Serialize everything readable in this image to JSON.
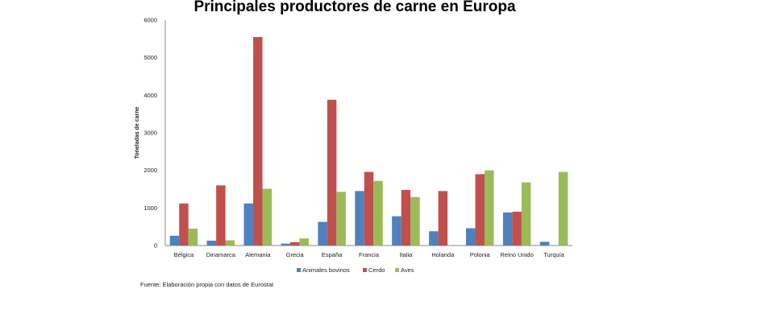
{
  "chart_data": {
    "type": "bar",
    "title": "Principales productores de carne en Europa",
    "ylabel": "Toneladas de carne",
    "xlabel": "",
    "ylim": [
      0,
      6000
    ],
    "yticks": [
      "0",
      "1000",
      "2000",
      "3000",
      "4000",
      "5000",
      "6000"
    ],
    "categories": [
      "Bélgica",
      "Dinamarca",
      "Alemania",
      "Grecia",
      "España",
      "Francia",
      "Italia",
      "Holanda",
      "Polonia",
      "Reino Unido",
      "Turquía"
    ],
    "series": [
      {
        "name": "Animales bovinos",
        "color": "#4f81bd",
        "values": [
          260,
          130,
          1120,
          50,
          630,
          1450,
          780,
          380,
          460,
          880,
          100
        ]
      },
      {
        "name": "Cerdo",
        "color": "#c0504d",
        "values": [
          1120,
          1600,
          5550,
          90,
          3880,
          1960,
          1480,
          1450,
          1900,
          900,
          0
        ]
      },
      {
        "name": "Aves",
        "color": "#9bbb59",
        "values": [
          450,
          140,
          1510,
          190,
          1430,
          1720,
          1290,
          0,
          2000,
          1680,
          1960
        ]
      }
    ],
    "grid": false,
    "legend_position": "bottom",
    "source_note": "Fuente: Elaboración propia con datos de Eurostat"
  }
}
